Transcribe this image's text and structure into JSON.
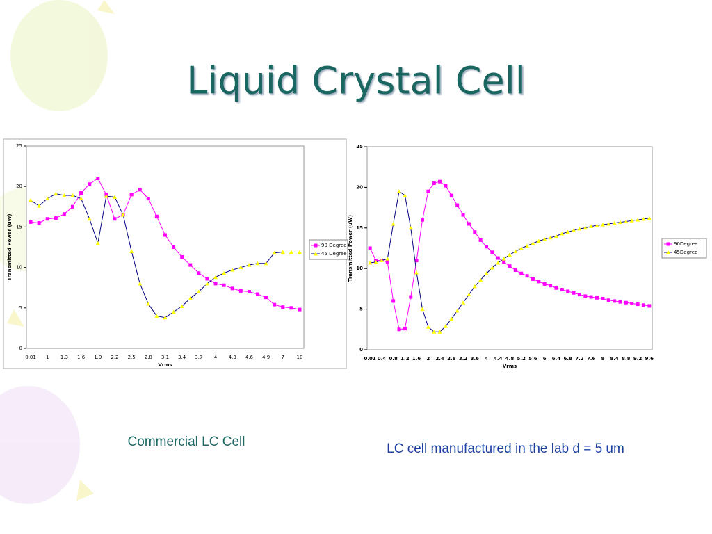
{
  "title": "Liquid Crystal Cell",
  "chart_data": [
    {
      "type": "line",
      "x_label": "Vrms",
      "y_label": "Transmitted Power (uW)",
      "categories": [
        "0.01",
        null,
        "1",
        null,
        "1.3",
        null,
        "1.6",
        null,
        "1.9",
        null,
        "2.2",
        null,
        "2.5",
        null,
        "2.8",
        null,
        "3.1",
        null,
        "3.4",
        null,
        "3.7",
        null,
        "4",
        null,
        "4.3",
        null,
        "4.6",
        null,
        "4.9",
        null,
        "7",
        null,
        "10"
      ],
      "series": [
        {
          "name": "90 Degree",
          "color": "#ff00ff",
          "marker_color": "#ff00ff",
          "marker": "square",
          "values": [
            15.6,
            15.5,
            16.0,
            16.1,
            16.6,
            17.5,
            19.2,
            20.3,
            21.0,
            19.0,
            16.0,
            16.5,
            19.0,
            19.6,
            18.5,
            16.3,
            14.0,
            12.5,
            11.3,
            10.3,
            9.3,
            8.6,
            8.0,
            7.8,
            7.4,
            7.1,
            7.0,
            6.7,
            6.3,
            5.4,
            5.1,
            5.0,
            4.8
          ]
        },
        {
          "name": "45 Degree",
          "color": "#000080",
          "marker_color": "#ffff00",
          "marker": "triangle",
          "values": [
            18.3,
            17.6,
            18.5,
            19.1,
            18.9,
            18.9,
            18.5,
            16.0,
            13.0,
            18.8,
            18.7,
            16.5,
            12.0,
            8.0,
            5.5,
            4.0,
            3.8,
            4.5,
            5.2,
            6.2,
            7.0,
            8.0,
            8.8,
            9.3,
            9.7,
            10.0,
            10.3,
            10.5,
            10.5,
            11.8,
            11.9,
            11.9,
            11.9
          ]
        }
      ],
      "ylim": [
        0,
        25
      ],
      "yticks": [
        0,
        5,
        10,
        15,
        20,
        25
      ],
      "legend": "right"
    },
    {
      "type": "line",
      "x_label": "Vrms",
      "y_label": "Transmitted Power (uW)",
      "categories": [
        "0.01",
        null,
        "0.4",
        null,
        "0.8",
        null,
        "1.2",
        null,
        "1.6",
        null,
        "2",
        null,
        "2.4",
        null,
        "2.8",
        null,
        "3.2",
        null,
        "3.6",
        null,
        "4",
        null,
        "4.4",
        null,
        "4.8",
        null,
        "5.2",
        null,
        "5.6",
        null,
        "6",
        null,
        "6.4",
        null,
        "6.8",
        null,
        "7.2",
        null,
        "7.6",
        null,
        "8",
        null,
        "8.4",
        null,
        "8.8",
        null,
        "9.2",
        null,
        "9.6"
      ],
      "series": [
        {
          "name": "90Degree",
          "color": "#ff00ff",
          "marker_color": "#ff00ff",
          "marker": "square",
          "values": [
            12.5,
            11.0,
            11.0,
            10.8,
            6.0,
            2.5,
            2.6,
            6.5,
            11.0,
            16.0,
            19.5,
            20.5,
            20.7,
            20.2,
            19.0,
            17.8,
            16.6,
            15.5,
            14.5,
            13.5,
            12.7,
            12.0,
            11.3,
            10.8,
            10.3,
            9.8,
            9.4,
            9.1,
            8.7,
            8.4,
            8.1,
            7.9,
            7.6,
            7.4,
            7.2,
            7.0,
            6.8,
            6.6,
            6.5,
            6.4,
            6.3,
            6.1,
            6.0,
            5.9,
            5.8,
            5.7,
            5.6,
            5.5,
            5.4
          ]
        },
        {
          "name": "45Degree",
          "color": "#000080",
          "marker_color": "#ffff00",
          "marker": "triangle",
          "values": [
            10.7,
            10.8,
            11.0,
            11.2,
            15.5,
            19.5,
            19.0,
            15.0,
            9.5,
            5.0,
            2.8,
            2.2,
            2.2,
            2.9,
            3.8,
            4.8,
            5.8,
            6.8,
            7.8,
            8.6,
            9.4,
            10.1,
            10.7,
            11.2,
            11.7,
            12.1,
            12.5,
            12.8,
            13.1,
            13.4,
            13.6,
            13.8,
            14.0,
            14.3,
            14.5,
            14.7,
            14.9,
            15.0,
            15.2,
            15.3,
            15.4,
            15.5,
            15.6,
            15.7,
            15.8,
            15.9,
            16.0,
            16.1,
            16.2
          ]
        }
      ],
      "ylim": [
        0,
        25
      ],
      "yticks": [
        0,
        5,
        10,
        15,
        20,
        25
      ],
      "legend": "right"
    }
  ],
  "captions": [
    "Commercial LC Cell",
    "LC cell manufactured in the lab d = 5 um"
  ]
}
